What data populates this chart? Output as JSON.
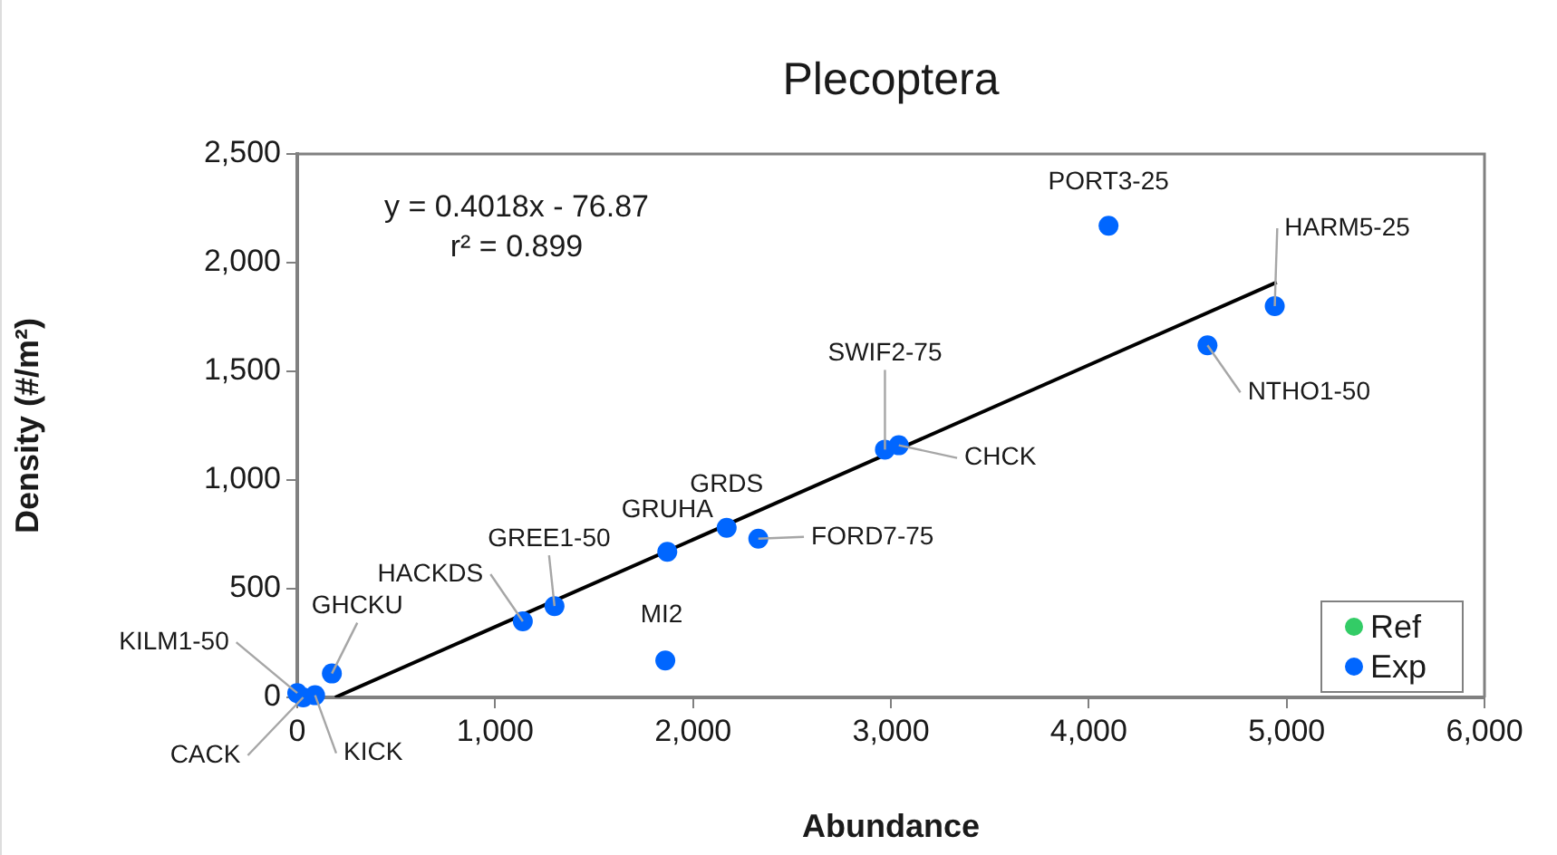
{
  "chart_data": {
    "type": "scatter",
    "title": "Plecoptera",
    "xlabel": "Abundance",
    "ylabel": "Density (#/m²)",
    "xlim": [
      0,
      6000
    ],
    "xticks": [
      {
        "value": 0,
        "label": "0"
      },
      {
        "value": 1000,
        "label": "1,000"
      },
      {
        "value": 2000,
        "label": "2,000"
      },
      {
        "value": 3000,
        "label": "3,000"
      },
      {
        "value": 4000,
        "label": "4,000"
      },
      {
        "value": 5000,
        "label": "5,000"
      },
      {
        "value": 6000,
        "label": "6,000"
      }
    ],
    "ylim": [
      0,
      2500
    ],
    "yticks": [
      {
        "value": 0,
        "label": "0"
      },
      {
        "value": 500,
        "label": "500"
      },
      {
        "value": 1000,
        "label": "1,000"
      },
      {
        "value": 1500,
        "label": "1,500"
      },
      {
        "value": 2000,
        "label": "2,000"
      },
      {
        "value": 2500,
        "label": "2,500"
      }
    ],
    "grid": false,
    "legend": "bottom right",
    "marker": "circle",
    "series": [
      {
        "name": "Ref",
        "color": "#33cc66"
      },
      {
        "name": "Exp",
        "color": "#0066ff",
        "x": [
          0,
          30,
          90,
          175,
          1140,
          1300,
          1860,
          1870,
          2170,
          2330,
          2970,
          3040,
          4100,
          4600,
          4940
        ],
        "values": [
          20,
          0,
          10,
          110,
          350,
          420,
          170,
          670,
          780,
          730,
          1140,
          1160,
          2170,
          1620,
          1800
        ]
      },
      {
        "type": "line",
        "color": "#000000",
        "x": [
          191.3,
          4950
        ],
        "values": [
          0,
          1910
        ],
        "marker": "none",
        "line_style": "solid"
      }
    ],
    "annotations": [
      "y = 0.4018x - 76.87",
      "r² = 0.899",
      {
        "text": "KILM1-50",
        "x": 0,
        "y": 20
      },
      {
        "text": "CACK",
        "x": 30,
        "y": 0
      },
      {
        "text": "KICK",
        "x": 90,
        "y": 10
      },
      {
        "text": "GHCKU",
        "x": 175,
        "y": 110
      },
      {
        "text": "HACKDS",
        "x": 1140,
        "y": 350
      },
      {
        "text": "GREE1-50",
        "x": 1300,
        "y": 420
      },
      {
        "text": "MI2",
        "x": 1860,
        "y": 170
      },
      {
        "text": "GRUHA",
        "x": 1870,
        "y": 670
      },
      {
        "text": "GRDS",
        "x": 2170,
        "y": 780
      },
      {
        "text": "FORD7-75",
        "x": 2330,
        "y": 730
      },
      {
        "text": "SWIF2-75",
        "x": 2970,
        "y": 1140
      },
      {
        "text": "CHCK",
        "x": 3040,
        "y": 1160
      },
      {
        "text": "PORT3-25",
        "x": 4100,
        "y": 2170
      },
      {
        "text": "NTHO1-50",
        "x": 4600,
        "y": 1620
      },
      {
        "text": "HARM5-25",
        "x": 4940,
        "y": 1800
      }
    ]
  }
}
